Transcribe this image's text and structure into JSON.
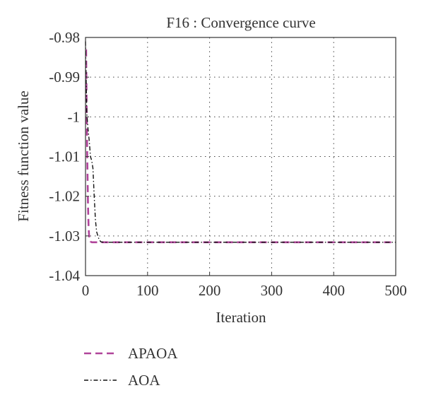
{
  "chart_data": {
    "type": "line",
    "title": "F16 : Convergence curve",
    "xlabel": "Iteration",
    "ylabel": "Fitness function value",
    "xlim": [
      0,
      500
    ],
    "ylim": [
      -1.04,
      -0.98
    ],
    "x_ticks": [
      "0",
      "100",
      "200",
      "300",
      "400",
      "500"
    ],
    "y_ticks": [
      "-0.98",
      "-0.99",
      "-1",
      "-1.01",
      "-1.02",
      "-1.03",
      "-1.04"
    ],
    "grid": true,
    "legend_position": "below",
    "series": [
      {
        "name": "APAOA",
        "color": "#b0449a",
        "style": "dashed",
        "x": [
          1,
          2,
          3,
          4,
          5,
          6,
          8,
          10,
          500
        ],
        "y": [
          -0.983,
          -1.0,
          -1.012,
          -1.022,
          -1.028,
          -1.0305,
          -1.0314,
          -1.0316,
          -1.0316
        ]
      },
      {
        "name": "AOA",
        "color": "#111111",
        "style": "dashdot",
        "x": [
          0,
          2,
          4,
          6,
          8,
          10,
          12,
          14,
          16,
          18,
          20,
          22,
          25,
          30,
          500
        ],
        "y": [
          -0.981,
          -0.999,
          -1.003,
          -1.006,
          -1.01,
          -1.011,
          -1.013,
          -1.02,
          -1.026,
          -1.029,
          -1.03,
          -1.031,
          -1.0315,
          -1.0316,
          -1.0316
        ]
      }
    ]
  }
}
